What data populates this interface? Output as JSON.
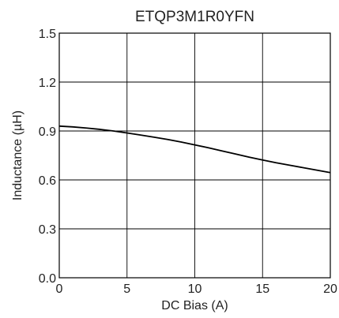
{
  "chart_data": {
    "type": "line",
    "title": "ETQP3M1R0YFN",
    "xlabel": "DC Bias (A)",
    "ylabel": "Inductance (µH)",
    "xlim": [
      0,
      20
    ],
    "ylim": [
      0.0,
      1.5
    ],
    "x_ticks": [
      0,
      5,
      10,
      15,
      20
    ],
    "y_ticks": [
      0.0,
      0.3,
      0.6,
      0.9,
      1.2,
      1.5
    ],
    "x_tick_labels": [
      "0",
      "5",
      "10",
      "15",
      "20"
    ],
    "y_tick_labels": [
      "0.0",
      "0.3",
      "0.6",
      "0.9",
      "1.2",
      "1.5"
    ],
    "grid": true,
    "series": [
      {
        "x": [
          0,
          1,
          2,
          3,
          4,
          5,
          6,
          7,
          8,
          9,
          10,
          11,
          12,
          13,
          14,
          15,
          16,
          17,
          18,
          19,
          20
        ],
        "y": [
          0.93,
          0.925,
          0.918,
          0.91,
          0.9,
          0.888,
          0.875,
          0.862,
          0.848,
          0.832,
          0.815,
          0.797,
          0.778,
          0.759,
          0.74,
          0.722,
          0.705,
          0.69,
          0.675,
          0.66,
          0.645
        ],
        "color": "#000000"
      }
    ]
  }
}
